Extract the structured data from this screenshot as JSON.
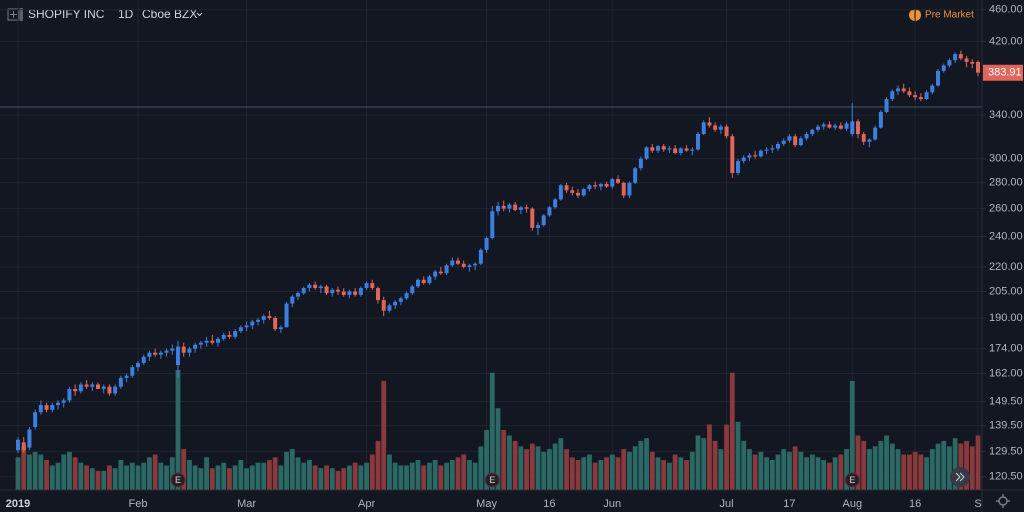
{
  "chart_data": {
    "type": "candlestick",
    "symbol": "SHOPIFY INC",
    "interval": "1D",
    "exchange": "Cboe BZX",
    "session": "Pre Market",
    "last_price": {
      "value": 383.91,
      "label": "383.91"
    },
    "reference_line": 348,
    "log_scale": true,
    "grid": true,
    "up_color": "#3c7fe0",
    "down_color": "#e0655a",
    "volume_up_color": "#2b6a64",
    "volume_down_color": "#8a3a3c",
    "ylim": [
      116,
      473
    ],
    "yticks": [
      {
        "value": 460,
        "label": "460.00"
      },
      {
        "value": 420,
        "label": "420.00"
      },
      {
        "value": 340,
        "label": "340.00"
      },
      {
        "value": 300,
        "label": "300.00"
      },
      {
        "value": 280,
        "label": "280.00"
      },
      {
        "value": 260,
        "label": "260.00"
      },
      {
        "value": 240,
        "label": "240.00"
      },
      {
        "value": 220,
        "label": "220.00"
      },
      {
        "value": 205,
        "label": "205.00"
      },
      {
        "value": 190,
        "label": "190.00"
      },
      {
        "value": 174,
        "label": "174.00"
      },
      {
        "value": 162,
        "label": "162.00"
      },
      {
        "value": 149.5,
        "label": "149.50"
      },
      {
        "value": 139.5,
        "label": "139.50"
      },
      {
        "value": 129.5,
        "label": "129.50"
      },
      {
        "value": 120.5,
        "label": "120.50"
      }
    ],
    "earnings": [
      {
        "candle": 28,
        "label": "E"
      },
      {
        "candle": 83,
        "label": "E"
      },
      {
        "candle": 146,
        "label": "E"
      }
    ],
    "categories": [
      "2019",
      null,
      null,
      null,
      null,
      null,
      null,
      null,
      null,
      null,
      null,
      null,
      null,
      null,
      null,
      null,
      null,
      null,
      null,
      null,
      null,
      "Feb",
      null,
      null,
      null,
      null,
      null,
      null,
      null,
      null,
      null,
      null,
      null,
      null,
      null,
      null,
      null,
      null,
      null,
      null,
      "Mar",
      null,
      null,
      null,
      null,
      null,
      null,
      null,
      null,
      null,
      null,
      null,
      null,
      null,
      null,
      null,
      null,
      null,
      null,
      null,
      null,
      "Apr",
      null,
      null,
      null,
      null,
      null,
      null,
      null,
      null,
      null,
      null,
      null,
      null,
      null,
      null,
      null,
      null,
      null,
      null,
      null,
      null,
      "May",
      null,
      null,
      null,
      null,
      null,
      null,
      null,
      null,
      null,
      null,
      "16",
      null,
      null,
      null,
      null,
      null,
      null,
      null,
      null,
      null,
      null,
      "Jun",
      null,
      null,
      null,
      null,
      null,
      null,
      null,
      null,
      null,
      null,
      null,
      null,
      null,
      null,
      null,
      null,
      null,
      null,
      null,
      "Jul",
      null,
      null,
      null,
      null,
      null,
      null,
      null,
      null,
      null,
      null,
      "17",
      null,
      null,
      null,
      null,
      null,
      null,
      null,
      null,
      null,
      null,
      "Aug",
      null,
      null,
      null,
      null,
      null,
      null,
      null,
      null,
      null,
      null,
      "16",
      null,
      null,
      null,
      null,
      null,
      null,
      null,
      null,
      null,
      null,
      "S"
    ],
    "candles": [
      [
        130,
        135,
        129,
        134,
        1.2
      ],
      [
        133,
        135,
        129,
        130,
        1.6
      ],
      [
        131,
        139,
        130,
        138,
        1.3
      ],
      [
        139,
        146,
        138,
        145,
        1.4
      ],
      [
        145,
        150,
        144,
        148,
        1.3
      ],
      [
        148,
        149,
        145,
        146,
        1.1
      ],
      [
        146,
        149,
        145,
        148,
        0.9
      ],
      [
        148,
        150,
        146,
        149,
        1.0
      ],
      [
        149,
        151,
        147,
        150,
        1.3
      ],
      [
        150,
        156,
        149,
        155,
        1.4
      ],
      [
        155,
        157,
        152,
        154,
        1.2
      ],
      [
        154,
        158,
        153,
        157,
        1.0
      ],
      [
        157,
        159,
        155,
        156,
        0.9
      ],
      [
        156,
        158,
        154,
        157,
        0.8
      ],
      [
        157,
        158,
        155,
        155,
        0.7
      ],
      [
        155,
        157,
        153,
        156,
        0.7
      ],
      [
        156,
        157,
        152,
        153,
        0.9
      ],
      [
        153,
        157,
        152,
        156,
        0.8
      ],
      [
        156,
        161,
        155,
        160,
        1.1
      ],
      [
        160,
        162,
        158,
        161,
        0.9
      ],
      [
        161,
        166,
        160,
        165,
        1.0
      ],
      [
        165,
        168,
        163,
        167,
        0.9
      ],
      [
        167,
        171,
        166,
        170,
        1.0
      ],
      [
        170,
        173,
        168,
        172,
        1.2
      ],
      [
        172,
        174,
        170,
        171,
        1.3
      ],
      [
        171,
        173,
        169,
        172,
        1.0
      ],
      [
        172,
        174,
        170,
        173,
        0.9
      ],
      [
        173,
        176,
        171,
        174,
        1.2
      ],
      [
        166,
        178,
        160,
        175,
        4.4
      ],
      [
        175,
        177,
        170,
        172,
        1.5
      ],
      [
        172,
        175,
        170,
        174,
        1.1
      ],
      [
        174,
        177,
        172,
        176,
        0.9
      ],
      [
        176,
        178,
        174,
        177,
        0.8
      ],
      [
        177,
        180,
        175,
        178,
        1.2
      ],
      [
        178,
        181,
        176,
        177,
        0.8
      ],
      [
        177,
        180,
        175,
        179,
        0.9
      ],
      [
        179,
        182,
        178,
        181,
        1.0
      ],
      [
        181,
        183,
        179,
        180,
        0.8
      ],
      [
        180,
        184,
        179,
        183,
        0.9
      ],
      [
        183,
        186,
        182,
        185,
        1.1
      ],
      [
        185,
        188,
        183,
        186,
        0.8
      ],
      [
        186,
        189,
        184,
        188,
        0.9
      ],
      [
        188,
        190,
        186,
        189,
        1.0
      ],
      [
        189,
        192,
        187,
        191,
        1.0
      ],
      [
        191,
        194,
        189,
        190,
        1.1
      ],
      [
        190,
        191,
        183,
        184,
        1.2
      ],
      [
        184,
        186,
        182,
        185,
        0.9
      ],
      [
        185,
        199,
        185,
        198,
        1.4
      ],
      [
        198,
        203,
        196,
        202,
        1.5
      ],
      [
        202,
        205,
        200,
        204,
        1.2
      ],
      [
        204,
        208,
        203,
        207,
        1.0
      ],
      [
        207,
        210,
        205,
        209,
        1.1
      ],
      [
        209,
        211,
        206,
        207,
        0.9
      ],
      [
        207,
        209,
        204,
        208,
        0.8
      ],
      [
        208,
        209,
        203,
        204,
        0.9
      ],
      [
        204,
        207,
        202,
        206,
        0.8
      ],
      [
        206,
        208,
        203,
        205,
        0.7
      ],
      [
        205,
        207,
        202,
        203,
        0.8
      ],
      [
        203,
        206,
        201,
        205,
        0.9
      ],
      [
        205,
        207,
        202,
        203,
        1.0
      ],
      [
        203,
        208,
        202,
        207,
        0.9
      ],
      [
        207,
        211,
        206,
        210,
        1.0
      ],
      [
        210,
        212,
        206,
        207,
        1.3
      ],
      [
        207,
        208,
        198,
        200,
        1.8
      ],
      [
        200,
        202,
        191,
        194,
        4.0
      ],
      [
        194,
        198,
        193,
        197,
        1.3
      ],
      [
        197,
        200,
        195,
        199,
        1.0
      ],
      [
        199,
        202,
        197,
        201,
        0.9
      ],
      [
        201,
        205,
        200,
        204,
        0.9
      ],
      [
        204,
        209,
        203,
        208,
        1.0
      ],
      [
        208,
        213,
        207,
        212,
        1.1
      ],
      [
        212,
        214,
        209,
        210,
        0.9
      ],
      [
        210,
        215,
        209,
        214,
        1.0
      ],
      [
        214,
        218,
        212,
        217,
        1.1
      ],
      [
        217,
        220,
        215,
        216,
        0.9
      ],
      [
        216,
        222,
        215,
        221,
        1.0
      ],
      [
        221,
        226,
        220,
        224,
        1.1
      ],
      [
        224,
        226,
        221,
        222,
        1.2
      ],
      [
        222,
        224,
        219,
        220,
        1.3
      ],
      [
        220,
        222,
        217,
        221,
        1.1
      ],
      [
        221,
        223,
        218,
        222,
        1.0
      ],
      [
        222,
        232,
        221,
        231,
        1.6
      ],
      [
        231,
        240,
        229,
        239,
        2.2
      ],
      [
        239,
        262,
        238,
        258,
        4.3
      ],
      [
        258,
        265,
        255,
        262,
        3.0
      ],
      [
        262,
        266,
        258,
        260,
        2.2
      ],
      [
        260,
        264,
        257,
        263,
        2.0
      ],
      [
        263,
        265,
        258,
        259,
        1.8
      ],
      [
        259,
        262,
        256,
        261,
        1.6
      ],
      [
        261,
        263,
        257,
        260,
        1.5
      ],
      [
        260,
        261,
        244,
        246,
        1.7
      ],
      [
        246,
        250,
        241,
        248,
        1.6
      ],
      [
        248,
        256,
        247,
        255,
        1.4
      ],
      [
        255,
        262,
        254,
        261,
        1.5
      ],
      [
        261,
        268,
        260,
        267,
        1.7
      ],
      [
        267,
        279,
        266,
        278,
        1.9
      ],
      [
        278,
        280,
        272,
        274,
        1.5
      ],
      [
        274,
        277,
        270,
        272,
        1.2
      ],
      [
        272,
        275,
        268,
        270,
        1.1
      ],
      [
        270,
        276,
        269,
        275,
        1.2
      ],
      [
        275,
        279,
        273,
        278,
        1.3
      ],
      [
        278,
        281,
        275,
        277,
        1.0
      ],
      [
        277,
        280,
        274,
        279,
        1.1
      ],
      [
        279,
        281,
        276,
        277,
        1.2
      ],
      [
        277,
        284,
        275,
        283,
        1.3
      ],
      [
        283,
        286,
        279,
        280,
        1.2
      ],
      [
        280,
        281,
        268,
        270,
        1.5
      ],
      [
        270,
        281,
        268,
        280,
        1.4
      ],
      [
        280,
        293,
        279,
        292,
        1.6
      ],
      [
        292,
        302,
        290,
        300,
        1.8
      ],
      [
        300,
        311,
        299,
        310,
        1.9
      ],
      [
        310,
        313,
        305,
        307,
        1.4
      ],
      [
        307,
        312,
        305,
        311,
        1.2
      ],
      [
        311,
        313,
        306,
        308,
        1.1
      ],
      [
        308,
        311,
        305,
        309,
        1.0
      ],
      [
        309,
        312,
        304,
        305,
        1.3
      ],
      [
        305,
        310,
        303,
        309,
        1.2
      ],
      [
        309,
        312,
        306,
        307,
        1.1
      ],
      [
        307,
        310,
        303,
        308,
        1.4
      ],
      [
        308,
        324,
        307,
        322,
        2.0
      ],
      [
        322,
        335,
        321,
        333,
        1.9
      ],
      [
        333,
        338,
        328,
        330,
        2.4
      ],
      [
        330,
        333,
        324,
        326,
        1.8
      ],
      [
        326,
        331,
        322,
        329,
        1.5
      ],
      [
        329,
        331,
        318,
        320,
        2.4
      ],
      [
        320,
        322,
        284,
        288,
        4.3
      ],
      [
        288,
        300,
        286,
        298,
        2.5
      ],
      [
        298,
        303,
        296,
        301,
        1.8
      ],
      [
        301,
        305,
        298,
        303,
        1.5
      ],
      [
        303,
        307,
        300,
        302,
        1.3
      ],
      [
        302,
        308,
        301,
        307,
        1.4
      ],
      [
        307,
        310,
        304,
        308,
        1.2
      ],
      [
        308,
        312,
        305,
        309,
        1.1
      ],
      [
        309,
        315,
        307,
        313,
        1.3
      ],
      [
        313,
        318,
        311,
        316,
        1.5
      ],
      [
        316,
        322,
        314,
        320,
        1.4
      ],
      [
        320,
        322,
        310,
        312,
        1.6
      ],
      [
        312,
        320,
        311,
        318,
        1.4
      ],
      [
        318,
        324,
        316,
        322,
        1.2
      ],
      [
        322,
        327,
        320,
        326,
        1.3
      ],
      [
        326,
        331,
        324,
        329,
        1.2
      ],
      [
        329,
        333,
        326,
        331,
        1.1
      ],
      [
        331,
        334,
        327,
        328,
        1.0
      ],
      [
        328,
        332,
        326,
        330,
        1.2
      ],
      [
        330,
        333,
        326,
        327,
        1.3
      ],
      [
        327,
        334,
        325,
        332,
        1.5
      ],
      [
        322,
        352,
        320,
        334,
        4.0
      ],
      [
        334,
        336,
        318,
        322,
        2.0
      ],
      [
        322,
        324,
        312,
        315,
        1.8
      ],
      [
        315,
        318,
        310,
        317,
        1.5
      ],
      [
        317,
        330,
        316,
        328,
        1.6
      ],
      [
        328,
        345,
        327,
        343,
        1.8
      ],
      [
        343,
        358,
        342,
        356,
        2.0
      ],
      [
        356,
        366,
        354,
        364,
        1.7
      ],
      [
        364,
        370,
        360,
        367,
        1.5
      ],
      [
        367,
        372,
        362,
        364,
        1.3
      ],
      [
        364,
        368,
        358,
        360,
        1.3
      ],
      [
        360,
        364,
        355,
        358,
        1.4
      ],
      [
        358,
        362,
        354,
        356,
        1.3
      ],
      [
        356,
        365,
        355,
        363,
        1.2
      ],
      [
        363,
        372,
        361,
        370,
        1.5
      ],
      [
        370,
        388,
        369,
        386,
        1.7
      ],
      [
        386,
        394,
        384,
        392,
        1.8
      ],
      [
        392,
        400,
        390,
        398,
        1.6
      ],
      [
        398,
        407,
        395,
        405,
        1.9
      ],
      [
        405,
        409,
        398,
        400,
        1.7
      ],
      [
        400,
        403,
        390,
        396,
        1.8
      ],
      [
        396,
        399,
        389,
        394,
        1.6
      ],
      [
        396,
        398,
        380,
        384,
        2.0
      ]
    ]
  }
}
